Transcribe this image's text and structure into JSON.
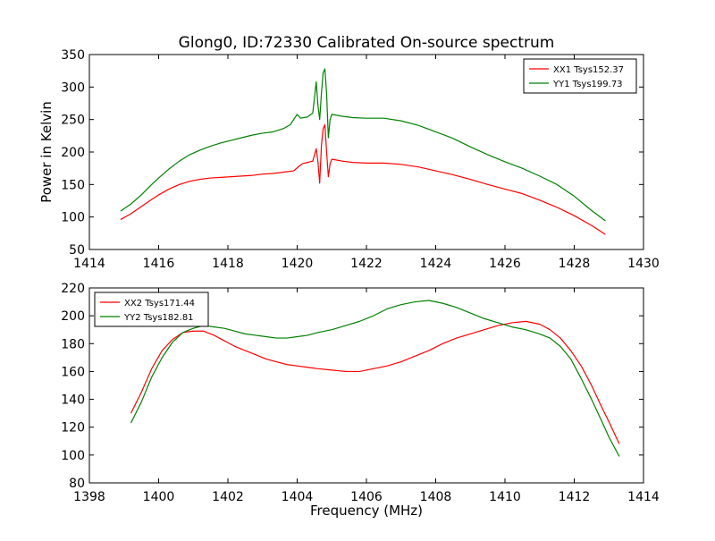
{
  "chart_data": [
    {
      "type": "line",
      "title": "Glong0, ID:72330 Calibrated On-source spectrum",
      "xlabel": "",
      "ylabel": "Power in Kelvin",
      "xlim": [
        1414,
        1430
      ],
      "ylim": [
        50,
        350
      ],
      "xticks": [
        1414,
        1416,
        1418,
        1420,
        1422,
        1424,
        1426,
        1428,
        1430
      ],
      "yticks": [
        50,
        100,
        150,
        200,
        250,
        300,
        350
      ],
      "legend_position": "upper right",
      "series": [
        {
          "name": "XX1 Tsys152.37",
          "color": "#ff0000",
          "points": [
            [
              1414.9,
              96
            ],
            [
              1415.2,
              105
            ],
            [
              1415.5,
              116
            ],
            [
              1415.8,
              127
            ],
            [
              1416.0,
              134
            ],
            [
              1416.3,
              143
            ],
            [
              1416.6,
              150
            ],
            [
              1416.9,
              155
            ],
            [
              1417.2,
              158
            ],
            [
              1417.5,
              160
            ],
            [
              1417.8,
              161
            ],
            [
              1418.1,
              162
            ],
            [
              1418.4,
              163
            ],
            [
              1418.7,
              164
            ],
            [
              1419.0,
              166
            ],
            [
              1419.3,
              167
            ],
            [
              1419.6,
              169
            ],
            [
              1419.9,
              171
            ],
            [
              1420.05,
              178
            ],
            [
              1420.15,
              182
            ],
            [
              1420.3,
              184
            ],
            [
              1420.45,
              186
            ],
            [
              1420.55,
              205
            ],
            [
              1420.6,
              185
            ],
            [
              1420.65,
              152
            ],
            [
              1420.7,
              210
            ],
            [
              1420.75,
              236
            ],
            [
              1420.8,
              242
            ],
            [
              1420.85,
              200
            ],
            [
              1420.9,
              162
            ],
            [
              1420.95,
              182
            ],
            [
              1421.0,
              189
            ],
            [
              1421.3,
              186
            ],
            [
              1421.6,
              184
            ],
            [
              1422.0,
              183
            ],
            [
              1422.5,
              183
            ],
            [
              1423.0,
              181
            ],
            [
              1423.5,
              177
            ],
            [
              1424.0,
              171
            ],
            [
              1424.5,
              165
            ],
            [
              1425.0,
              158
            ],
            [
              1425.5,
              150
            ],
            [
              1426.0,
              143
            ],
            [
              1426.5,
              136
            ],
            [
              1427.0,
              126
            ],
            [
              1427.5,
              115
            ],
            [
              1428.0,
              102
            ],
            [
              1428.5,
              87
            ],
            [
              1428.9,
              73
            ]
          ]
        },
        {
          "name": "YY1 Tsys199.73",
          "color": "#008000",
          "points": [
            [
              1414.9,
              109
            ],
            [
              1415.2,
              120
            ],
            [
              1415.5,
              134
            ],
            [
              1415.8,
              150
            ],
            [
              1416.0,
              160
            ],
            [
              1416.3,
              174
            ],
            [
              1416.6,
              186
            ],
            [
              1416.9,
              196
            ],
            [
              1417.2,
              203
            ],
            [
              1417.5,
              209
            ],
            [
              1417.8,
              214
            ],
            [
              1418.1,
              218
            ],
            [
              1418.4,
              222
            ],
            [
              1418.7,
              226
            ],
            [
              1419.0,
              229
            ],
            [
              1419.3,
              231
            ],
            [
              1419.6,
              236
            ],
            [
              1419.8,
              242
            ],
            [
              1420.0,
              258
            ],
            [
              1420.1,
              252
            ],
            [
              1420.3,
              254
            ],
            [
              1420.45,
              260
            ],
            [
              1420.55,
              308
            ],
            [
              1420.6,
              272
            ],
            [
              1420.65,
              250
            ],
            [
              1420.7,
              290
            ],
            [
              1420.75,
              322
            ],
            [
              1420.8,
              328
            ],
            [
              1420.85,
              290
            ],
            [
              1420.9,
              222
            ],
            [
              1420.95,
              250
            ],
            [
              1421.0,
              258
            ],
            [
              1421.3,
              255
            ],
            [
              1421.6,
              253
            ],
            [
              1422.0,
              252
            ],
            [
              1422.5,
              252
            ],
            [
              1423.0,
              248
            ],
            [
              1423.5,
              241
            ],
            [
              1424.0,
              231
            ],
            [
              1424.5,
              221
            ],
            [
              1425.0,
              208
            ],
            [
              1425.5,
              196
            ],
            [
              1426.0,
              185
            ],
            [
              1426.5,
              175
            ],
            [
              1427.0,
              163
            ],
            [
              1427.5,
              150
            ],
            [
              1428.0,
              132
            ],
            [
              1428.5,
              110
            ],
            [
              1428.9,
              94
            ]
          ]
        }
      ]
    },
    {
      "type": "line",
      "title": "",
      "xlabel": "Frequency (MHz)",
      "ylabel": "",
      "xlim": [
        1398,
        1414
      ],
      "ylim": [
        80,
        220
      ],
      "xticks": [
        1398,
        1400,
        1402,
        1404,
        1406,
        1408,
        1410,
        1412,
        1414
      ],
      "yticks": [
        80,
        100,
        120,
        140,
        160,
        180,
        200,
        220
      ],
      "legend_position": "upper left",
      "series": [
        {
          "name": "XX2 Tsys171.44",
          "color": "#ff0000",
          "points": [
            [
              1399.2,
              130
            ],
            [
              1399.5,
              145
            ],
            [
              1399.8,
              162
            ],
            [
              1400.1,
              175
            ],
            [
              1400.4,
              183
            ],
            [
              1400.7,
              188
            ],
            [
              1401.0,
              189
            ],
            [
              1401.3,
              189
            ],
            [
              1401.6,
              186
            ],
            [
              1401.9,
              182
            ],
            [
              1402.2,
              178
            ],
            [
              1402.5,
              175
            ],
            [
              1402.8,
              172
            ],
            [
              1403.1,
              169
            ],
            [
              1403.4,
              167
            ],
            [
              1403.7,
              165
            ],
            [
              1404.0,
              164
            ],
            [
              1404.3,
              163
            ],
            [
              1404.6,
              162
            ],
            [
              1405.0,
              161
            ],
            [
              1405.4,
              160
            ],
            [
              1405.8,
              160
            ],
            [
              1406.2,
              162
            ],
            [
              1406.6,
              164
            ],
            [
              1407.0,
              167
            ],
            [
              1407.4,
              171
            ],
            [
              1407.8,
              175
            ],
            [
              1408.2,
              180
            ],
            [
              1408.6,
              184
            ],
            [
              1409.0,
              187
            ],
            [
              1409.4,
              190
            ],
            [
              1409.8,
              193
            ],
            [
              1410.2,
              195
            ],
            [
              1410.6,
              196
            ],
            [
              1411.0,
              194
            ],
            [
              1411.3,
              190
            ],
            [
              1411.6,
              184
            ],
            [
              1411.9,
              175
            ],
            [
              1412.2,
              164
            ],
            [
              1412.5,
              150
            ],
            [
              1412.8,
              134
            ],
            [
              1413.0,
              124
            ],
            [
              1413.3,
              108
            ]
          ]
        },
        {
          "name": "YY2 Tsys182.81",
          "color": "#008000",
          "points": [
            [
              1399.2,
              123
            ],
            [
              1399.5,
              138
            ],
            [
              1399.8,
              156
            ],
            [
              1400.1,
              170
            ],
            [
              1400.4,
              181
            ],
            [
              1400.7,
              188
            ],
            [
              1401.0,
              191
            ],
            [
              1401.3,
              193
            ],
            [
              1401.6,
              192
            ],
            [
              1401.9,
              191
            ],
            [
              1402.2,
              189
            ],
            [
              1402.5,
              187
            ],
            [
              1402.8,
              186
            ],
            [
              1403.1,
              185
            ],
            [
              1403.4,
              184
            ],
            [
              1403.7,
              184
            ],
            [
              1404.0,
              185
            ],
            [
              1404.3,
              186
            ],
            [
              1404.6,
              188
            ],
            [
              1405.0,
              190
            ],
            [
              1405.4,
              193
            ],
            [
              1405.8,
              196
            ],
            [
              1406.2,
              200
            ],
            [
              1406.6,
              205
            ],
            [
              1407.0,
              208
            ],
            [
              1407.4,
              210
            ],
            [
              1407.8,
              211
            ],
            [
              1408.2,
              209
            ],
            [
              1408.6,
              206
            ],
            [
              1409.0,
              202
            ],
            [
              1409.4,
              198
            ],
            [
              1409.8,
              195
            ],
            [
              1410.2,
              192
            ],
            [
              1410.6,
              190
            ],
            [
              1411.0,
              187
            ],
            [
              1411.3,
              184
            ],
            [
              1411.6,
              178
            ],
            [
              1411.9,
              169
            ],
            [
              1412.2,
              155
            ],
            [
              1412.5,
              140
            ],
            [
              1412.8,
              124
            ],
            [
              1413.0,
              113
            ],
            [
              1413.3,
              99
            ]
          ]
        }
      ]
    }
  ]
}
